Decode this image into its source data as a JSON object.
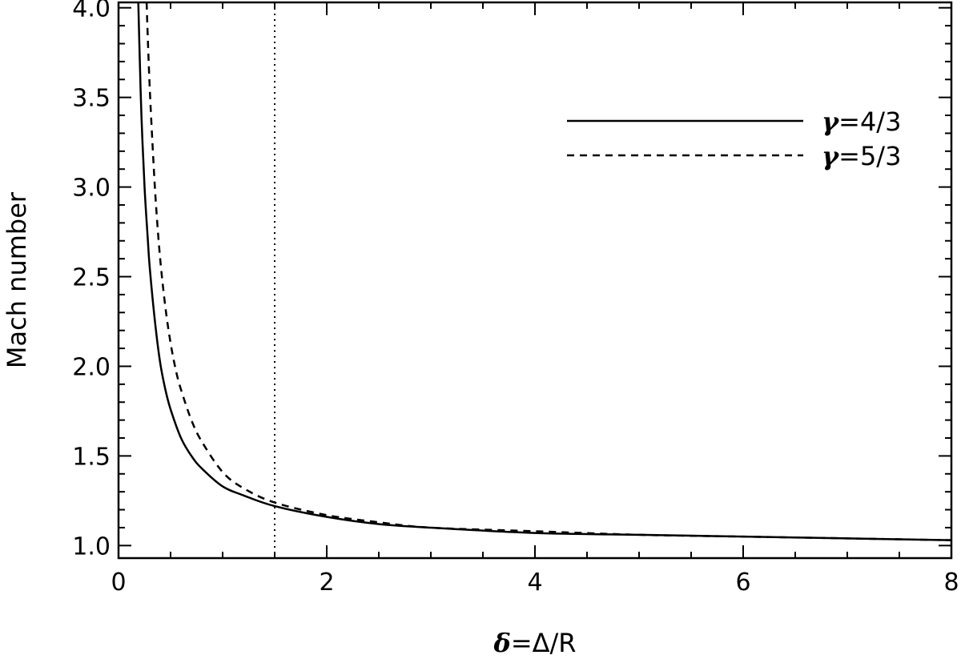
{
  "chart_data": {
    "type": "line",
    "xlabel": {
      "symbol": "δ",
      "rest": "=Δ/R"
    },
    "ylabel": "Mach number",
    "xlim": [
      0,
      8
    ],
    "ylim": [
      0.93,
      4.03
    ],
    "x_ticks": [
      "0",
      "2",
      "4",
      "6",
      "8"
    ],
    "x_tick_values": [
      0,
      2,
      4,
      6,
      8
    ],
    "y_ticks": [
      "1.0",
      "1.5",
      "2.0",
      "2.5",
      "3.0",
      "3.5",
      "4.0"
    ],
    "y_tick_values": [
      1.0,
      1.5,
      2.0,
      2.5,
      3.0,
      3.5,
      4.0
    ],
    "vertical_line": {
      "x": 1.5,
      "style": "dotted"
    },
    "legend_position": "top-right",
    "series": [
      {
        "name": "γ=4/3",
        "name_parts": {
          "symbol": "γ",
          "rest": "=4/3"
        },
        "style": "solid",
        "x": [
          0.19,
          0.2,
          0.22,
          0.25,
          0.28,
          0.3,
          0.35,
          0.4,
          0.45,
          0.5,
          0.6,
          0.7,
          0.8,
          1.0,
          1.2,
          1.5,
          2.0,
          2.5,
          3.0,
          4.0,
          5.0,
          6.0,
          7.0,
          8.0
        ],
        "y": [
          4.03,
          3.8,
          3.4,
          3.0,
          2.72,
          2.55,
          2.25,
          2.02,
          1.87,
          1.76,
          1.6,
          1.5,
          1.43,
          1.33,
          1.28,
          1.22,
          1.16,
          1.12,
          1.1,
          1.07,
          1.06,
          1.05,
          1.04,
          1.03
        ]
      },
      {
        "name": "γ=5/3",
        "name_parts": {
          "symbol": "γ",
          "rest": "=5/3"
        },
        "style": "dashed",
        "x": [
          0.27,
          0.28,
          0.3,
          0.33,
          0.36,
          0.4,
          0.45,
          0.5,
          0.55,
          0.6,
          0.7,
          0.8,
          1.0,
          1.2,
          1.5,
          2.0,
          2.5,
          3.0,
          4.0,
          5.0,
          6.0,
          7.0,
          8.0
        ],
        "y": [
          4.03,
          3.85,
          3.55,
          3.2,
          2.9,
          2.6,
          2.33,
          2.13,
          1.98,
          1.87,
          1.7,
          1.58,
          1.41,
          1.32,
          1.24,
          1.17,
          1.13,
          1.1,
          1.08,
          1.06,
          1.05,
          1.04,
          1.03
        ]
      }
    ]
  }
}
